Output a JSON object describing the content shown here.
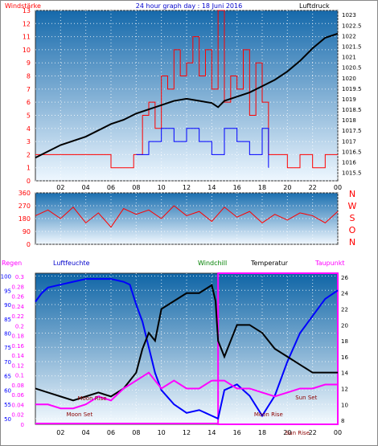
{
  "title": "24 hour graph day : 18 Juni 2016",
  "colors": {
    "wind": "#ff0000",
    "gust": "#0000ff",
    "pressure": "#000000",
    "humidity": "#0000ff",
    "temperature": "#000000",
    "dewpoint": "#ff00ff",
    "rain": "#ff00ff",
    "grid": "#ffffff",
    "bg_top": "#1c6fb0",
    "bg_bottom": "#e6f3ff"
  },
  "chart_data": [
    {
      "type": "line",
      "name": "wind_pressure",
      "left_label": "Windstärke",
      "right_label": "Luftdruck",
      "x_ticks": [
        "02",
        "04",
        "06",
        "08",
        "10",
        "12",
        "14",
        "16",
        "18",
        "20",
        "22",
        "00"
      ],
      "left_ticks": [
        "0",
        "1",
        "2",
        "3",
        "4",
        "5",
        "6",
        "7",
        "8",
        "9",
        "10",
        "11",
        "12",
        "13"
      ],
      "right_ticks": [
        "1015.5",
        "1016",
        "1016.5",
        "1017",
        "1017.5",
        "1018",
        "1018.5",
        "1019",
        "1019.5",
        "1020",
        "1020.5",
        "1021",
        "1021.5",
        "1022",
        "1022.5",
        "1023"
      ],
      "ylim_left": [
        0,
        13
      ],
      "ylim_right": [
        1015.1,
        1023.2
      ],
      "pressure": {
        "x": [
          0,
          1,
          2,
          3,
          4,
          5,
          6,
          7,
          8,
          9,
          10,
          11,
          12,
          13,
          14,
          14.5,
          15,
          16,
          17,
          18,
          19,
          20,
          21,
          22,
          23,
          24
        ],
        "y": [
          1016.2,
          1016.5,
          1016.8,
          1017.0,
          1017.2,
          1017.5,
          1017.8,
          1018.0,
          1018.3,
          1018.5,
          1018.7,
          1018.9,
          1019.0,
          1018.9,
          1018.8,
          1018.6,
          1018.9,
          1019.1,
          1019.3,
          1019.6,
          1019.9,
          1020.3,
          1020.8,
          1021.4,
          1021.9,
          1022.1
        ]
      },
      "wind": {
        "x": [
          0,
          2,
          4,
          6,
          7.8,
          8.5,
          9,
          9.5,
          10,
          10.5,
          11,
          11.5,
          12,
          12.5,
          13,
          13.5,
          14,
          14.5,
          15,
          15.5,
          16,
          16.5,
          17,
          17.5,
          18,
          18.5,
          19,
          20,
          21,
          22,
          23,
          24
        ],
        "y": [
          2,
          2,
          2,
          1,
          2,
          5,
          6,
          4,
          8,
          7,
          10,
          8,
          9,
          11,
          8,
          10,
          7,
          13,
          6,
          8,
          7,
          10,
          5,
          9,
          6,
          2,
          2,
          1,
          2,
          1,
          2,
          2
        ]
      },
      "gust": {
        "x": [
          8,
          9,
          10,
          11,
          12,
          13,
          14,
          15,
          16,
          17,
          18,
          18.5
        ],
        "y": [
          2,
          3,
          4,
          3,
          4,
          3,
          2,
          4,
          3,
          2,
          4,
          1
        ]
      }
    },
    {
      "type": "line",
      "name": "wind_direction",
      "left_ticks": [
        "0",
        "90",
        "180",
        "270",
        "360"
      ],
      "right_letters": [
        "N",
        "W",
        "S",
        "O",
        "N"
      ],
      "ylim": [
        0,
        360
      ],
      "direction": {
        "x": [
          0,
          1,
          2,
          3,
          4,
          5,
          6,
          7,
          8,
          9,
          10,
          11,
          12,
          13,
          14,
          15,
          16,
          17,
          18,
          19,
          20,
          21,
          22,
          23,
          24
        ],
        "y": [
          200,
          240,
          180,
          260,
          150,
          220,
          120,
          250,
          210,
          240,
          180,
          270,
          200,
          230,
          160,
          260,
          190,
          230,
          150,
          210,
          170,
          220,
          200,
          150,
          230
        ]
      }
    },
    {
      "type": "line",
      "name": "humidity_temperature",
      "header_labels": {
        "rain": "Regen",
        "humidity": "Luftfeuchte",
        "windchill": "Windchill",
        "temperature": "Temperatur",
        "dewpoint": "Taupunkt"
      },
      "rain_ticks": [
        "0",
        "0.02",
        "0.04",
        "0.06",
        "0.08",
        "0.1",
        "0.12",
        "0.14",
        "0.16",
        "0.18",
        "0.2",
        "0.22",
        "0.24",
        "0.26",
        "0.28",
        "0.3"
      ],
      "humidity_ticks": [
        "50",
        "55",
        "60",
        "65",
        "70",
        "75",
        "80",
        "85",
        "90",
        "95",
        "100"
      ],
      "temp_ticks": [
        "8",
        "10",
        "12",
        "14",
        "16",
        "18",
        "20",
        "22",
        "24",
        "26"
      ],
      "ylim_humidity": [
        48,
        101
      ],
      "ylim_temp": [
        7.5,
        26.5
      ],
      "x_ticks": [
        "02",
        "04",
        "06",
        "08",
        "10",
        "12",
        "14",
        "16",
        "18",
        "20",
        "22",
        "00"
      ],
      "humidity": {
        "x": [
          0,
          0.5,
          1,
          2,
          3,
          4,
          5,
          6,
          7,
          7.5,
          8,
          8.5,
          9,
          9.5,
          10,
          11,
          12,
          13,
          14,
          14.5,
          15,
          16,
          17,
          18,
          19,
          20,
          21,
          22,
          23,
          24
        ],
        "y": [
          91,
          94,
          96,
          97,
          98,
          99,
          99,
          99,
          98,
          97,
          90,
          84,
          75,
          66,
          60,
          55,
          52,
          53,
          51,
          50,
          60,
          62,
          58,
          51,
          58,
          70,
          80,
          86,
          92,
          95
        ]
      },
      "temperature": {
        "x": [
          0,
          1,
          2,
          3,
          4,
          5,
          6,
          7,
          8,
          8.5,
          9,
          9.5,
          10,
          11,
          12,
          13,
          14,
          14.3,
          14.5,
          15,
          16,
          17,
          18,
          19,
          20,
          21,
          22,
          23,
          24
        ],
        "y": [
          12,
          11.5,
          11,
          10.5,
          11,
          11.5,
          11,
          12,
          14,
          17,
          19,
          18,
          22,
          23,
          24,
          24,
          25,
          23,
          18,
          16,
          20,
          20,
          19,
          17,
          16,
          15,
          14,
          14,
          14
        ]
      },
      "dewpoint": {
        "x": [
          0,
          1,
          2,
          3,
          4,
          5,
          6,
          7,
          8,
          9,
          10,
          11,
          12,
          13,
          14,
          15,
          16,
          17,
          18,
          19,
          20,
          21,
          22,
          23,
          24
        ],
        "y": [
          10,
          10,
          9.5,
          9.5,
          10,
          11,
          10.5,
          12,
          13,
          14,
          12,
          13,
          12,
          12,
          13,
          13,
          12,
          12,
          11.5,
          11,
          11.5,
          12,
          12,
          12.5,
          12.5
        ]
      },
      "annotations": [
        {
          "label": "Moon Rise",
          "x": 4.5
        },
        {
          "label": "Moon Set",
          "x": 3.5
        },
        {
          "label": "Moon Rise",
          "x": 18.5
        },
        {
          "label": "Sun Set",
          "x": 21.5
        },
        {
          "label": "Sun Rise",
          "x": 20.8
        }
      ]
    }
  ]
}
